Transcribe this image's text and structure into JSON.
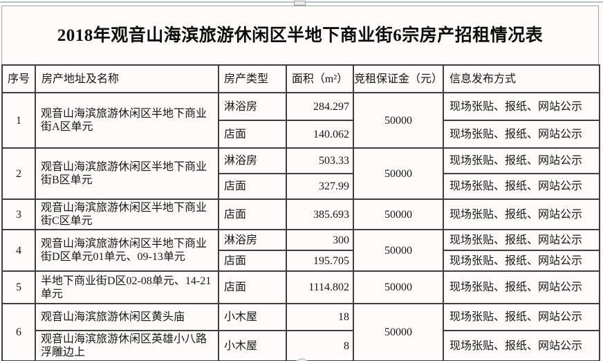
{
  "page": {
    "title": "2018年观音山海滨旅游休闲区半地下商业街6宗房产招租情况表"
  },
  "table": {
    "headers": [
      "序号",
      "房产地址及名称",
      "房产类型",
      "面积（m²）",
      "竞租保证金（元）",
      "信息发布方式"
    ],
    "rows": [
      {
        "no": "1",
        "address": "观音山海滨旅游休闲区半地下商业街A区单元",
        "deposit": "50000",
        "units": [
          {
            "type": "淋浴房",
            "area": "284.297",
            "publish": "现场张贴、报纸、网站公示"
          },
          {
            "type": "店面",
            "area": "140.062",
            "publish": "现场张贴、报纸、网站公示"
          }
        ]
      },
      {
        "no": "2",
        "address": "观音山海滨旅游休闲区半地下商业街B区单元",
        "deposit": "50000",
        "units": [
          {
            "type": "淋浴房",
            "area": "503.33",
            "publish": "现场张贴、报纸、网站公示"
          },
          {
            "type": "店面",
            "area": "327.99",
            "publish": "现场张贴、报纸、网站公示"
          }
        ]
      },
      {
        "no": "3",
        "address": "观音山海滨旅游休闲区半地下商业街C区单元",
        "deposit": "50000",
        "units": [
          {
            "type": "店面",
            "area": "385.693",
            "publish": "现场张贴、报纸、网站公示"
          }
        ]
      },
      {
        "no": "4",
        "address": "观音山海滨旅游休闲区半地下商业街D区单元01单元、09-13单元",
        "deposit": "50000",
        "units": [
          {
            "type": "淋浴房",
            "area": "300",
            "publish": "现场张贴、报纸、网站公示"
          },
          {
            "type": "店面",
            "area": "195.705",
            "publish": "现场张贴、报纸、网站公示"
          }
        ]
      },
      {
        "no": "5",
        "address": "半地下商业街D区02-08单元、14-21单元",
        "deposit": "50000",
        "units": [
          {
            "type": "店面",
            "area": "1114.802",
            "publish": "现场张贴、报纸、网站公示"
          }
        ]
      },
      {
        "no": "6",
        "deposit": "50000",
        "units": [
          {
            "address": "观音山海滨旅游休闲区黄头庙",
            "type": "小木屋",
            "area": "18",
            "publish": "现场张贴、报纸、网站公示"
          },
          {
            "address": "观音山海滨旅游休闲区英雄小八路浮雕边上",
            "type": "小木屋",
            "area": "8",
            "publish": "现场张贴、报纸、网站公示"
          }
        ]
      }
    ]
  },
  "colors": {
    "grid_border": "#3e3e3e",
    "page_border": "#a2a2a2",
    "top_line": "#b6c3d2",
    "background": "#fdfcf9",
    "text": "#161616"
  }
}
